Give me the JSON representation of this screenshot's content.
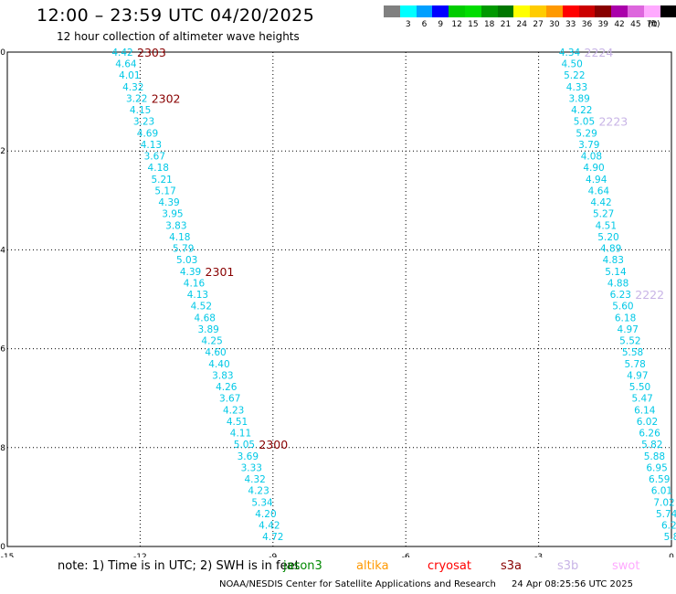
{
  "header": {
    "title": "12:00 – 23:59 UTC 04/20/2025",
    "subtitle": "12 hour collection of altimeter wave heights"
  },
  "legend": {
    "unit": "(ft)",
    "items": [
      {
        "label": "",
        "color": "#808080"
      },
      {
        "label": "3",
        "color": "#00ffff"
      },
      {
        "label": "6",
        "color": "#00a0ff"
      },
      {
        "label": "9",
        "color": "#0000ff"
      },
      {
        "label": "12",
        "color": "#00cc00"
      },
      {
        "label": "15",
        "color": "#00dd00"
      },
      {
        "label": "18",
        "color": "#009900"
      },
      {
        "label": "21",
        "color": "#007700"
      },
      {
        "label": "24",
        "color": "#ffff00"
      },
      {
        "label": "27",
        "color": "#ffcc00"
      },
      {
        "label": "30",
        "color": "#ff9900"
      },
      {
        "label": "33",
        "color": "#ff0000"
      },
      {
        "label": "36",
        "color": "#cc0000"
      },
      {
        "label": "39",
        "color": "#880000"
      },
      {
        "label": "42",
        "color": "#aa00aa"
      },
      {
        "label": "45",
        "color": "#dd66dd"
      },
      {
        "label": "70",
        "color": "#ffaaff"
      },
      {
        "label": "",
        "color": "#000000"
      }
    ]
  },
  "map": {
    "lon_range": [
      -15,
      0
    ],
    "lat_range": [
      -30,
      -20
    ],
    "lon_ticks": [
      "-15",
      "-12",
      "-9",
      "-6",
      "-3",
      "0"
    ],
    "lat_ticks": [
      "-20",
      "-22",
      "-24",
      "-26",
      "-28",
      "-30"
    ],
    "wave_color": "#00c8e6",
    "time_label_color": "#880000",
    "time_label_color_alt": "#c8b4e6"
  },
  "tracks": [
    {
      "heights": [
        "4.42",
        "4.64",
        "4.01",
        "4.32",
        "3.22",
        "4.15",
        "3.23",
        "4.69",
        "4.13",
        "3.67",
        "4.18",
        "5.21",
        "5.17",
        "4.39",
        "3.95",
        "3.83",
        "4.18",
        "5.79",
        "5.03",
        "4.39",
        "4.16",
        "4.13",
        "4.52",
        "4.68",
        "3.89",
        "4.25",
        "4.60",
        "4.40",
        "3.83",
        "4.26",
        "3.67",
        "4.23",
        "4.51",
        "4.11",
        "5.05",
        "3.69",
        "3.33",
        "4.32",
        "4.23",
        "5.34",
        "4.20",
        "4.42",
        "4.72"
      ],
      "start": [
        -12.4,
        -20.0
      ],
      "end": [
        -9.0,
        -29.8
      ],
      "time_labels": [
        {
          "text": "2303",
          "index": 0
        },
        {
          "text": "2302",
          "index": 4
        },
        {
          "text": "2301",
          "index": 19
        },
        {
          "text": "2300",
          "index": 34
        }
      ]
    },
    {
      "heights": [
        "4.34",
        "4.50",
        "5.22",
        "4.33",
        "3.89",
        "4.22",
        "5.05",
        "5.29",
        "3.79",
        "4.08",
        "4.90",
        "4.94",
        "4.64",
        "4.42",
        "5.27",
        "4.51",
        "5.20",
        "4.89",
        "4.83",
        "5.14",
        "4.88",
        "6.23",
        "5.60",
        "6.18",
        "4.97",
        "5.52",
        "5.58",
        "5.78",
        "4.97",
        "5.50",
        "5.47",
        "6.14",
        "6.02",
        "6.26",
        "5.82",
        "5.88",
        "6.95",
        "6.59",
        "6.01",
        "7.02",
        "5.74",
        "6.2",
        "5.8"
      ],
      "start": [
        -2.3,
        -20.0
      ],
      "end": [
        0.0,
        -29.8
      ],
      "time_labels": [
        {
          "text": "2224",
          "index": 0
        },
        {
          "text": "2223",
          "index": 6
        },
        {
          "text": "2222",
          "index": 21
        }
      ]
    }
  ],
  "note": "note:  1) Time is in UTC;  2) SWH is in feet",
  "missions": [
    {
      "label": "jason3",
      "color": "#008800"
    },
    {
      "label": "altika",
      "color": "#ff9900"
    },
    {
      "label": "cryosat",
      "color": "#ff0000"
    },
    {
      "label": "s3a",
      "color": "#880000"
    },
    {
      "label": "s3b",
      "color": "#c8b4e6"
    },
    {
      "label": "swot",
      "color": "#ffaaff"
    }
  ],
  "footer": {
    "credit": "NOAA/NESDIS Center for Satellite Applications and Research",
    "timestamp": "24 Apr 08:25:56 UTC 2025"
  }
}
